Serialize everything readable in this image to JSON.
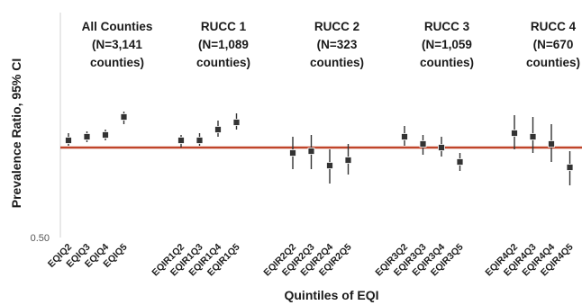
{
  "chart_data": {
    "type": "scatter",
    "ylabel": "Prevalence Ratio, 95% CI",
    "xlabel": "Quintiles of EQI",
    "y_tick_labels": [
      {
        "value": 0.5,
        "label": "0.50"
      }
    ],
    "ylim": [
      0.5,
      1.75
    ],
    "reference_line": {
      "value": 1.0,
      "color": "#c0452a"
    },
    "marker_color": "#333333",
    "groups": [
      {
        "title_lines": [
          "All Counties",
          "(N=3,141",
          "counties)"
        ],
        "points": [
          {
            "label": "EQIQ2",
            "value": 1.04,
            "lower": 1.01,
            "upper": 1.08
          },
          {
            "label": "EQIQ3",
            "value": 1.06,
            "lower": 1.03,
            "upper": 1.09
          },
          {
            "label": "EQIQ4",
            "value": 1.07,
            "lower": 1.04,
            "upper": 1.1
          },
          {
            "label": "EQIQ5",
            "value": 1.17,
            "lower": 1.13,
            "upper": 1.2
          }
        ]
      },
      {
        "title_lines": [
          "RUCC 1",
          "(N=1,089",
          "counties)"
        ],
        "points": [
          {
            "label": "EQIR1Q2",
            "value": 1.04,
            "lower": 1.0,
            "upper": 1.07
          },
          {
            "label": "EQIR1Q3",
            "value": 1.04,
            "lower": 1.01,
            "upper": 1.08
          },
          {
            "label": "EQIR1Q4",
            "value": 1.1,
            "lower": 1.06,
            "upper": 1.15
          },
          {
            "label": "EQIR1Q5",
            "value": 1.14,
            "lower": 1.1,
            "upper": 1.19
          }
        ]
      },
      {
        "title_lines": [
          "RUCC 2",
          "(N=323",
          "counties)"
        ],
        "points": [
          {
            "label": "EQIR2Q2",
            "value": 0.97,
            "lower": 0.88,
            "upper": 1.06
          },
          {
            "label": "EQIR2Q3",
            "value": 0.98,
            "lower": 0.88,
            "upper": 1.07
          },
          {
            "label": "EQIR2Q4",
            "value": 0.9,
            "lower": 0.8,
            "upper": 0.99
          },
          {
            "label": "EQIR2Q5",
            "value": 0.93,
            "lower": 0.85,
            "upper": 1.02
          }
        ]
      },
      {
        "title_lines": [
          "RUCC 3",
          "(N=1,059",
          "counties)"
        ],
        "points": [
          {
            "label": "EQIR3Q2",
            "value": 1.06,
            "lower": 1.01,
            "upper": 1.12
          },
          {
            "label": "EQIR3Q3",
            "value": 1.02,
            "lower": 0.96,
            "upper": 1.07
          },
          {
            "label": "EQIR3Q4",
            "value": 1.0,
            "lower": 0.95,
            "upper": 1.06
          },
          {
            "label": "EQIR3Q5",
            "value": 0.92,
            "lower": 0.87,
            "upper": 0.97
          }
        ]
      },
      {
        "title_lines": [
          "RUCC 4",
          "(N=670",
          "counties)"
        ],
        "points": [
          {
            "label": "EQIR4Q2",
            "value": 1.08,
            "lower": 0.99,
            "upper": 1.18
          },
          {
            "label": "EQIR4Q3",
            "value": 1.06,
            "lower": 0.97,
            "upper": 1.17
          },
          {
            "label": "EQIR4Q4",
            "value": 1.02,
            "lower": 0.92,
            "upper": 1.13
          },
          {
            "label": "EQIR4Q5",
            "value": 0.89,
            "lower": 0.79,
            "upper": 0.98
          }
        ]
      }
    ]
  }
}
